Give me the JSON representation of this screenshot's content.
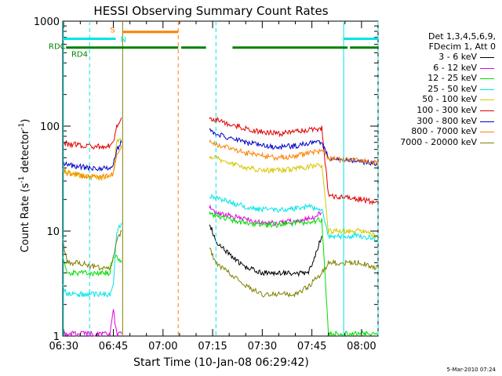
{
  "chart_data": {
    "type": "line",
    "title": "HESSI Observing Summary Count Rates",
    "xlabel": "Start Time (10-Jan-08 06:29:42)",
    "ylabel_base": "Count Rate (s",
    "ylabel_exp1": "-1",
    "ylabel_mid": " detector",
    "ylabel_exp2": "-1",
    "ylabel_end": ")",
    "yscale": "log",
    "ylim": [
      1,
      1000
    ],
    "xlim_min": [
      389.7,
      994
    ],
    "x_tick_labels": [
      "06:30",
      "06:45",
      "07:00",
      "07:15",
      "07:30",
      "07:45",
      "08:00"
    ],
    "x_tick_minutes": [
      390,
      405,
      420,
      435,
      450,
      465,
      480
    ],
    "y_tick_labels": [
      "1",
      "10",
      "100",
      "1000"
    ],
    "y_tick_values": [
      1,
      10,
      100,
      1000
    ],
    "legend_header": [
      "Det 1,3,4,5,6,9,",
      "FDecim 1, Att 0"
    ],
    "series": [
      {
        "name": "3 - 6 keV",
        "color": "#000000",
        "points": [
          [
            433,
            999
          ],
          [
            434,
            12
          ],
          [
            436,
            8
          ],
          [
            440,
            6
          ],
          [
            445,
            4.5
          ],
          [
            450,
            4
          ],
          [
            455,
            4
          ],
          [
            460,
            4
          ],
          [
            464,
            4
          ],
          [
            468,
            9
          ]
        ]
      },
      {
        "name": "6 - 12 keV",
        "color": "#e000e0",
        "points": [
          [
            389.7,
            999
          ],
          [
            390,
            1.05
          ],
          [
            404,
            1.05
          ],
          [
            405,
            1.8
          ],
          [
            406,
            1.05
          ],
          [
            407.5,
            1.05
          ],
          [
            433,
            999
          ],
          [
            434,
            17
          ],
          [
            436,
            15
          ],
          [
            440,
            14
          ],
          [
            445,
            13
          ],
          [
            450,
            12
          ],
          [
            455,
            12
          ],
          [
            460,
            12.5
          ],
          [
            464,
            13
          ],
          [
            468,
            15
          ]
        ]
      },
      {
        "name": "12 - 25 keV",
        "color": "#00dd00",
        "points": [
          [
            389.7,
            5.5
          ],
          [
            391,
            4
          ],
          [
            395,
            4
          ],
          [
            400,
            4
          ],
          [
            404,
            4
          ],
          [
            405,
            6
          ],
          [
            407.5,
            5
          ],
          [
            433,
            999
          ],
          [
            434,
            15
          ],
          [
            436,
            14
          ],
          [
            440,
            13
          ],
          [
            445,
            12
          ],
          [
            450,
            11.5
          ],
          [
            455,
            11.5
          ],
          [
            460,
            12
          ],
          [
            464,
            12
          ],
          [
            468,
            13
          ],
          [
            470,
            1.05
          ],
          [
            485,
            1.05
          ]
        ]
      },
      {
        "name": "25 - 50 keV",
        "color": "#00e5e5",
        "points": [
          [
            389.7,
            3
          ],
          [
            391,
            2.5
          ],
          [
            395,
            2.5
          ],
          [
            400,
            2.5
          ],
          [
            404,
            2.5
          ],
          [
            405,
            3
          ],
          [
            406,
            10
          ],
          [
            407.5,
            12
          ],
          [
            433,
            999
          ],
          [
            434,
            22
          ],
          [
            436,
            21
          ],
          [
            440,
            19
          ],
          [
            445,
            17
          ],
          [
            450,
            16
          ],
          [
            455,
            16
          ],
          [
            460,
            16.5
          ],
          [
            464,
            17
          ],
          [
            468,
            16
          ],
          [
            470,
            9
          ],
          [
            475,
            9
          ],
          [
            480,
            9
          ],
          [
            484,
            8.5
          ],
          [
            485,
            8.5
          ]
        ]
      },
      {
        "name": "50 - 100 keV",
        "color": "#d8c800",
        "points": [
          [
            389.7,
            40
          ],
          [
            391,
            36
          ],
          [
            395,
            34
          ],
          [
            400,
            32
          ],
          [
            404,
            32
          ],
          [
            405,
            35
          ],
          [
            406,
            70
          ],
          [
            407.5,
            75
          ],
          [
            433,
            999
          ],
          [
            434,
            52
          ],
          [
            436,
            50
          ],
          [
            440,
            45
          ],
          [
            445,
            40
          ],
          [
            450,
            38
          ],
          [
            455,
            38
          ],
          [
            460,
            39
          ],
          [
            464,
            41
          ],
          [
            468,
            42
          ],
          [
            470,
            10
          ],
          [
            475,
            10
          ],
          [
            480,
            10
          ],
          [
            484,
            9
          ],
          [
            485,
            9
          ]
        ]
      },
      {
        "name": "100 - 300 keV",
        "color": "#e00000",
        "points": [
          [
            389.7,
            70
          ],
          [
            391,
            68
          ],
          [
            395,
            66
          ],
          [
            400,
            64
          ],
          [
            404,
            65
          ],
          [
            405,
            70
          ],
          [
            406,
            100
          ],
          [
            407.5,
            120
          ],
          [
            433,
            999
          ],
          [
            434,
            120
          ],
          [
            436,
            115
          ],
          [
            440,
            105
          ],
          [
            445,
            95
          ],
          [
            450,
            88
          ],
          [
            455,
            85
          ],
          [
            460,
            88
          ],
          [
            464,
            92
          ],
          [
            468,
            95
          ],
          [
            470,
            22
          ],
          [
            475,
            21
          ],
          [
            480,
            20
          ],
          [
            484,
            19
          ],
          [
            485,
            19
          ]
        ]
      },
      {
        "name": "300 - 800 keV",
        "color": "#0000c8",
        "points": [
          [
            389.7,
            45
          ],
          [
            391,
            43
          ],
          [
            395,
            41
          ],
          [
            400,
            39
          ],
          [
            404,
            40
          ],
          [
            405,
            43
          ],
          [
            406,
            60
          ],
          [
            407.5,
            70
          ],
          [
            433,
            999
          ],
          [
            434,
            90
          ],
          [
            436,
            85
          ],
          [
            440,
            78
          ],
          [
            445,
            70
          ],
          [
            450,
            65
          ],
          [
            455,
            63
          ],
          [
            460,
            65
          ],
          [
            464,
            68
          ],
          [
            468,
            70
          ],
          [
            470,
            50
          ],
          [
            475,
            48
          ],
          [
            480,
            46
          ],
          [
            484,
            44
          ],
          [
            485,
            44
          ]
        ]
      },
      {
        "name": "800 - 7000 keV",
        "color": "#ff8000",
        "points": [
          [
            389.7,
            38
          ],
          [
            391,
            36
          ],
          [
            395,
            34
          ],
          [
            400,
            33
          ],
          [
            404,
            33
          ],
          [
            405,
            36
          ],
          [
            406,
            55
          ],
          [
            407.5,
            65
          ],
          [
            433,
            999
          ],
          [
            434,
            70
          ],
          [
            436,
            68
          ],
          [
            440,
            62
          ],
          [
            445,
            56
          ],
          [
            450,
            52
          ],
          [
            455,
            50
          ],
          [
            460,
            52
          ],
          [
            464,
            55
          ],
          [
            468,
            58
          ],
          [
            470,
            50
          ],
          [
            475,
            48
          ],
          [
            480,
            47
          ],
          [
            484,
            45
          ],
          [
            485,
            45
          ]
        ]
      },
      {
        "name": "7000 - 20000 keV",
        "color": "#808000",
        "points": [
          [
            389.7,
            8
          ],
          [
            391,
            5
          ],
          [
            395,
            5
          ],
          [
            400,
            4.5
          ],
          [
            404,
            4.5
          ],
          [
            405,
            5.5
          ],
          [
            406,
            8
          ],
          [
            407.5,
            10
          ],
          [
            433,
            999
          ],
          [
            434,
            7
          ],
          [
            436,
            5
          ],
          [
            440,
            4
          ],
          [
            445,
            3
          ],
          [
            450,
            2.5
          ],
          [
            455,
            2.5
          ],
          [
            460,
            2.5
          ],
          [
            464,
            3
          ],
          [
            468,
            4
          ],
          [
            470,
            5
          ],
          [
            475,
            5
          ],
          [
            480,
            5
          ],
          [
            484,
            4.5
          ],
          [
            485,
            4.5
          ]
        ]
      }
    ],
    "annotations": {
      "S": {
        "label": "S",
        "color": "#ff8000",
        "y": 790,
        "start": 407.8,
        "end": 424.6
      },
      "N": {
        "label": "N",
        "color": "#00e5e5",
        "y": 680,
        "segments": [
          [
            389.7,
            405.7
          ],
          [
            474.6,
            485
          ]
        ]
      },
      "RDC": {
        "label": "RDC",
        "color": "#008000",
        "y": 560,
        "segments": [
          [
            390.7,
            424.6
          ],
          [
            425.5,
            433
          ],
          [
            441,
            475.8
          ],
          [
            476.5,
            485
          ]
        ]
      },
      "RD4": {
        "label": "RD4",
        "color": "#008000"
      }
    },
    "vlines": {
      "cyan_dashed": [
        397.8,
        485,
        436
      ],
      "cyan_solid": [
        389.9,
        474.6
      ],
      "orange_dashed": [
        424.6
      ],
      "olive_solid": [
        407.8
      ]
    },
    "legend_position": "right",
    "grid": false
  },
  "footer_text": "5-Mar-2010 07:24"
}
